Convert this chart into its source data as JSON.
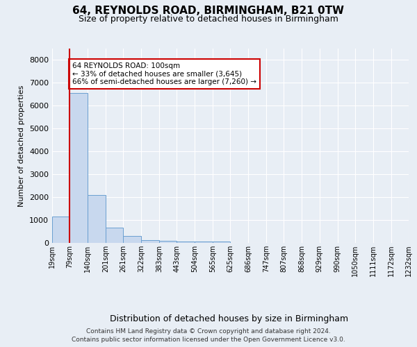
{
  "title": "64, REYNOLDS ROAD, BIRMINGHAM, B21 0TW",
  "subtitle": "Size of property relative to detached houses in Birmingham",
  "xlabel": "Distribution of detached houses by size in Birmingham",
  "ylabel": "Number of detached properties",
  "footer_line1": "Contains HM Land Registry data © Crown copyright and database right 2024.",
  "footer_line2": "Contains public sector information licensed under the Open Government Licence v3.0.",
  "bar_color": "#c8d8ee",
  "bar_edge_color": "#6a9fd0",
  "annotation_text": "64 REYNOLDS ROAD: 100sqm\n← 33% of detached houses are smaller (3,645)\n66% of semi-detached houses are larger (7,260) →",
  "annotation_box_color": "#ffffff",
  "annotation_box_edge_color": "#cc0000",
  "vline_color": "#cc0000",
  "vline_x_bin": 1,
  "bin_edges": [
    19,
    79,
    140,
    201,
    261,
    322,
    383,
    443,
    504,
    565,
    625,
    686,
    747,
    807,
    868,
    929,
    990,
    1050,
    1111,
    1172,
    1232
  ],
  "bar_heights": [
    1150,
    6550,
    2100,
    680,
    310,
    135,
    90,
    60,
    55,
    50,
    0,
    0,
    0,
    0,
    0,
    0,
    0,
    0,
    0,
    0
  ],
  "ylim": [
    0,
    8500
  ],
  "yticks": [
    0,
    1000,
    2000,
    3000,
    4000,
    5000,
    6000,
    7000,
    8000
  ],
  "background_color": "#e8eef5",
  "plot_background_color": "#e8eef5",
  "grid_color": "#ffffff"
}
